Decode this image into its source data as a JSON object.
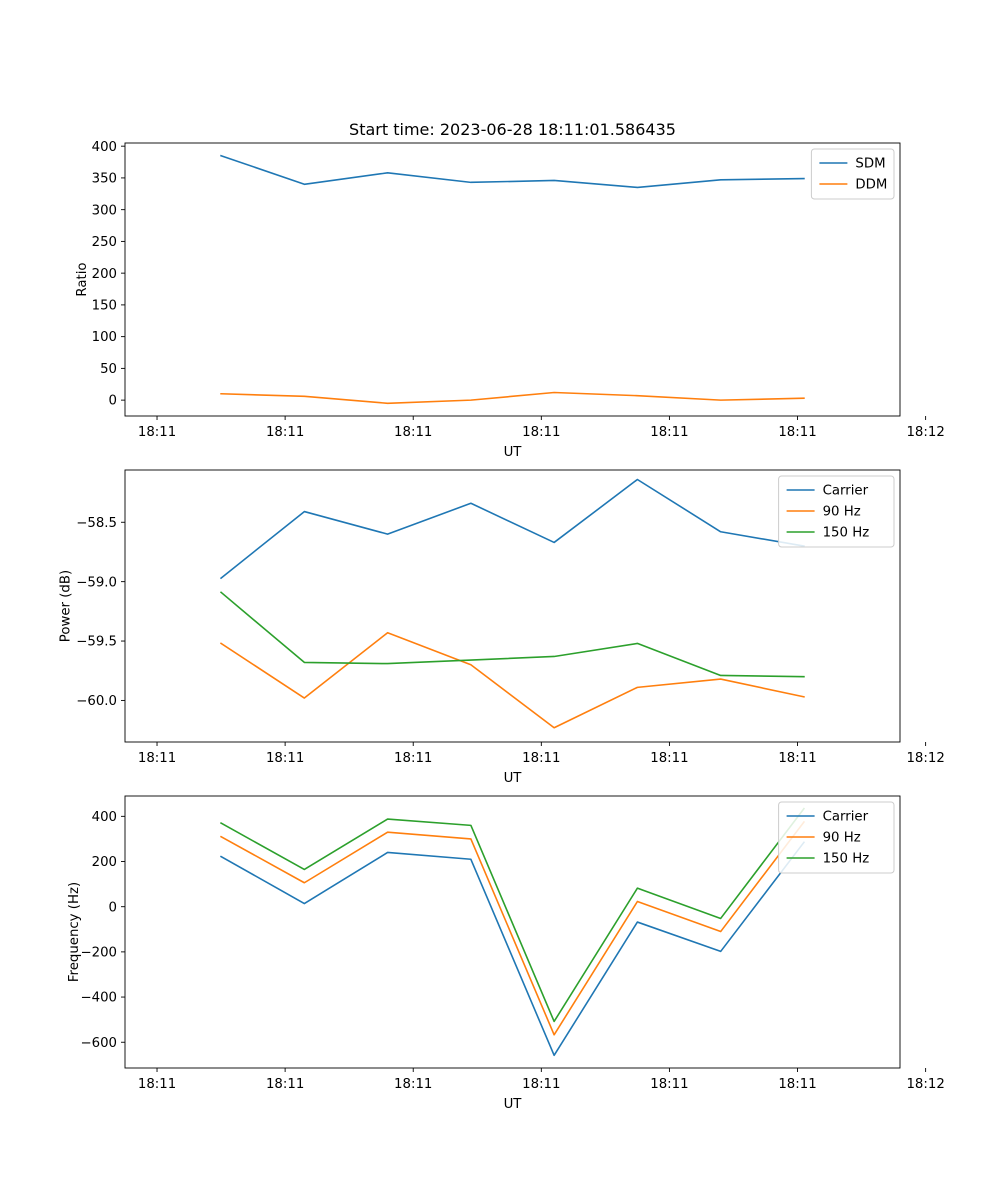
{
  "chart_data": [
    {
      "type": "line",
      "title": "Start time: 2023-06-28 18:11:01.586435",
      "xlabel": "UT",
      "ylabel": "Ratio",
      "xlim": [
        -0.25,
        5.8
      ],
      "ylim": [
        -25,
        405
      ],
      "x": [
        0.5,
        1.15,
        1.8,
        2.45,
        3.1,
        3.75,
        4.4,
        5.05
      ],
      "xticks": [
        0,
        1,
        2,
        3,
        4,
        5,
        6
      ],
      "xticklabels": [
        "18:11",
        "18:11",
        "18:11",
        "18:11",
        "18:11",
        "18:11",
        "18:12"
      ],
      "yticks": [
        0,
        50,
        100,
        150,
        200,
        250,
        300,
        350,
        400
      ],
      "yticklabels": [
        "0",
        "50",
        "100",
        "150",
        "200",
        "250",
        "300",
        "350",
        "400"
      ],
      "legend": "top-right",
      "series": [
        {
          "name": "SDM",
          "color": "#1f77b4",
          "values": [
            385,
            340,
            358,
            343,
            346,
            335,
            347,
            349
          ]
        },
        {
          "name": "DDM",
          "color": "#ff7f0e",
          "values": [
            10,
            6,
            -5,
            0,
            12,
            7,
            0,
            3
          ]
        }
      ]
    },
    {
      "type": "line",
      "title": "",
      "xlabel": "UT",
      "ylabel": "Power (dB)",
      "xlim": [
        -0.25,
        5.8
      ],
      "ylim": [
        -60.35,
        -58.06
      ],
      "x": [
        0.5,
        1.15,
        1.8,
        2.45,
        3.1,
        3.75,
        4.4,
        5.05
      ],
      "xticks": [
        0,
        1,
        2,
        3,
        4,
        5,
        6
      ],
      "xticklabels": [
        "18:11",
        "18:11",
        "18:11",
        "18:11",
        "18:11",
        "18:11",
        "18:12"
      ],
      "yticks": [
        -60.0,
        -59.5,
        -59.0,
        -58.5
      ],
      "yticklabels": [
        "−60.0",
        "−59.5",
        "−59.0",
        "−58.5"
      ],
      "legend": "top-right",
      "series": [
        {
          "name": "Carrier",
          "color": "#1f77b4",
          "values": [
            -58.97,
            -58.41,
            -58.6,
            -58.34,
            -58.67,
            -58.14,
            -58.58,
            -58.7
          ]
        },
        {
          "name": "90 Hz",
          "color": "#ff7f0e",
          "values": [
            -59.52,
            -59.98,
            -59.43,
            -59.7,
            -60.23,
            -59.89,
            -59.82,
            -59.97
          ]
        },
        {
          "name": "150 Hz",
          "color": "#2ca02c",
          "values": [
            -59.09,
            -59.68,
            -59.69,
            -59.66,
            -59.63,
            -59.52,
            -59.79,
            -59.8
          ]
        }
      ]
    },
    {
      "type": "line",
      "title": "",
      "xlabel": "UT",
      "ylabel": "Frequency (Hz)",
      "xlim": [
        -0.25,
        5.8
      ],
      "ylim": [
        -714,
        490
      ],
      "x": [
        0.5,
        1.15,
        1.8,
        2.45,
        3.1,
        3.75,
        4.4,
        5.05
      ],
      "xticks": [
        0,
        1,
        2,
        3,
        4,
        5,
        6
      ],
      "xticklabels": [
        "18:11",
        "18:11",
        "18:11",
        "18:11",
        "18:11",
        "18:11",
        "18:12"
      ],
      "yticks": [
        -600,
        -400,
        -200,
        0,
        200,
        400
      ],
      "yticklabels": [
        "−600",
        "−400",
        "−200",
        "0",
        "200",
        "400"
      ],
      "legend": "top-right",
      "series": [
        {
          "name": "Carrier",
          "color": "#1f77b4",
          "values": [
            222,
            14,
            240,
            210,
            -658,
            -68,
            -198,
            285
          ]
        },
        {
          "name": "90 Hz",
          "color": "#ff7f0e",
          "values": [
            310,
            106,
            330,
            300,
            -567,
            23,
            -110,
            375
          ]
        },
        {
          "name": "150 Hz",
          "color": "#2ca02c",
          "values": [
            370,
            165,
            388,
            360,
            -508,
            82,
            -52,
            434
          ]
        }
      ]
    }
  ]
}
